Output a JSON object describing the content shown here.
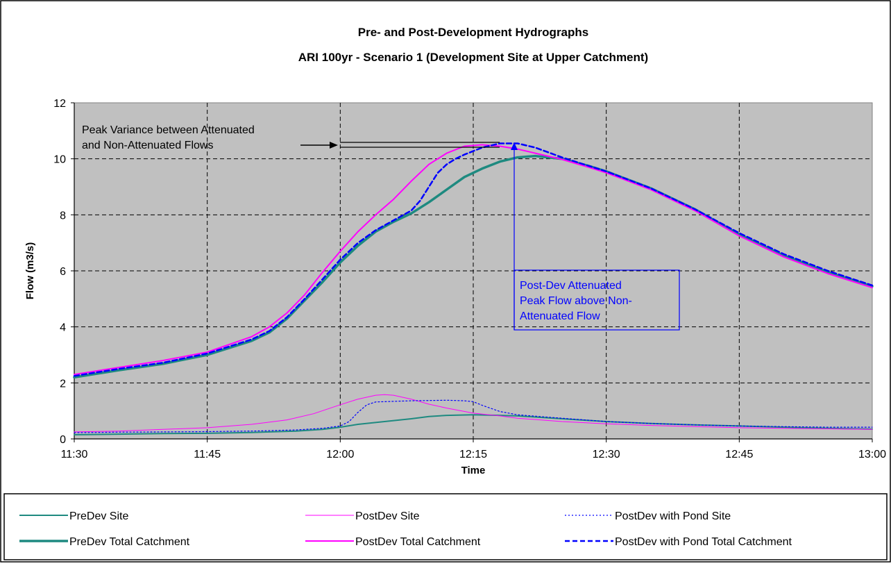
{
  "chart_data": {
    "type": "line",
    "title": "Pre- and Post-Development Hydrographs",
    "subtitle": "ARI 100yr - Scenario 1 (Development Site at Upper Catchment)",
    "xlabel": "Time",
    "ylabel": "Flow (m3/s)",
    "x_unit": "minutes after 11:30",
    "xlim": [
      0,
      90
    ],
    "ylim": [
      0,
      12
    ],
    "x_ticks": [
      0,
      15,
      30,
      45,
      60,
      75,
      90
    ],
    "x_tick_labels": [
      "11:30",
      "11:45",
      "12:00",
      "12:15",
      "12:30",
      "12:45",
      "13:00"
    ],
    "y_ticks": [
      0,
      2,
      4,
      6,
      8,
      10,
      12
    ],
    "y_tick_labels": [
      "0",
      "2",
      "4",
      "6",
      "8",
      "10",
      "12"
    ],
    "grid": true,
    "legend_position": "bottom",
    "plot_background": "#c0c0c0",
    "series": [
      {
        "name": "PreDev Site",
        "color": "#1e8a80",
        "style": "solid-medium",
        "x": [
          0,
          5,
          10,
          15,
          20,
          25,
          28,
          30,
          32,
          35,
          38,
          40,
          42,
          45,
          48,
          50,
          55,
          60,
          65,
          70,
          75,
          80,
          85,
          90
        ],
        "y": [
          0.15,
          0.17,
          0.19,
          0.2,
          0.23,
          0.28,
          0.34,
          0.42,
          0.52,
          0.62,
          0.72,
          0.8,
          0.84,
          0.86,
          0.84,
          0.82,
          0.72,
          0.62,
          0.55,
          0.5,
          0.46,
          0.42,
          0.38,
          0.35
        ]
      },
      {
        "name": "PostDev Site",
        "color": "#ff00ff",
        "style": "solid-thin",
        "x": [
          0,
          5,
          10,
          15,
          20,
          24,
          27,
          30,
          32,
          34,
          35,
          36,
          38,
          40,
          42,
          45,
          48,
          50,
          55,
          60,
          65,
          70,
          75,
          80,
          85,
          90
        ],
        "y": [
          0.25,
          0.28,
          0.34,
          0.4,
          0.52,
          0.68,
          0.9,
          1.22,
          1.42,
          1.56,
          1.58,
          1.56,
          1.42,
          1.24,
          1.1,
          0.92,
          0.82,
          0.74,
          0.62,
          0.54,
          0.48,
          0.44,
          0.4,
          0.38,
          0.36,
          0.34
        ]
      },
      {
        "name": "PostDev with Pond Site",
        "color": "#0000ff",
        "style": "dotted",
        "x": [
          0,
          5,
          10,
          15,
          20,
          25,
          28,
          30,
          31,
          32,
          33,
          34,
          38,
          42,
          44,
          45,
          46,
          48,
          50,
          55,
          60,
          65,
          70,
          75,
          80,
          85,
          90
        ],
        "y": [
          0.22,
          0.24,
          0.25,
          0.26,
          0.28,
          0.32,
          0.38,
          0.46,
          0.62,
          0.95,
          1.22,
          1.32,
          1.36,
          1.38,
          1.36,
          1.33,
          1.2,
          0.98,
          0.86,
          0.74,
          0.62,
          0.55,
          0.5,
          0.46,
          0.44,
          0.42,
          0.42
        ]
      },
      {
        "name": "PreDev Total Catchment",
        "color": "#1e8a80",
        "style": "solid-thick",
        "x": [
          0,
          5,
          10,
          15,
          20,
          22,
          24,
          26,
          28,
          30,
          32,
          34,
          36,
          38,
          40,
          42,
          44,
          46,
          48,
          50,
          52,
          55,
          58,
          60,
          65,
          70,
          75,
          80,
          85,
          90
        ],
        "y": [
          2.2,
          2.45,
          2.68,
          3.0,
          3.5,
          3.8,
          4.3,
          4.95,
          5.6,
          6.3,
          6.9,
          7.4,
          7.75,
          8.05,
          8.45,
          8.9,
          9.35,
          9.65,
          9.9,
          10.05,
          10.1,
          10.0,
          9.75,
          9.55,
          8.95,
          8.2,
          7.3,
          6.55,
          5.95,
          5.45
        ]
      },
      {
        "name": "PostDev Total Catchment",
        "color": "#ff00ff",
        "style": "solid-medium",
        "x": [
          0,
          5,
          10,
          15,
          20,
          22,
          24,
          26,
          28,
          30,
          32,
          34,
          36,
          38,
          40,
          42,
          44,
          46,
          48,
          50,
          52,
          55,
          58,
          60,
          65,
          70,
          75,
          80,
          85,
          90
        ],
        "y": [
          2.3,
          2.55,
          2.8,
          3.1,
          3.65,
          4.0,
          4.5,
          5.15,
          5.95,
          6.7,
          7.4,
          8.0,
          8.55,
          9.2,
          9.8,
          10.2,
          10.45,
          10.5,
          10.45,
          10.35,
          10.2,
          9.98,
          9.7,
          9.5,
          8.9,
          8.15,
          7.25,
          6.5,
          5.9,
          5.4
        ]
      },
      {
        "name": "PostDev with Pond Total Catchment",
        "color": "#0000ff",
        "style": "dashed",
        "x": [
          0,
          5,
          10,
          15,
          20,
          22,
          24,
          26,
          28,
          30,
          32,
          34,
          36,
          38,
          39,
          40,
          41,
          42,
          43,
          44,
          46,
          48,
          50,
          52,
          55,
          58,
          60,
          65,
          70,
          75,
          80,
          85,
          90
        ],
        "y": [
          2.25,
          2.5,
          2.72,
          3.05,
          3.55,
          3.85,
          4.35,
          5.0,
          5.7,
          6.4,
          7.0,
          7.45,
          7.8,
          8.15,
          8.5,
          9.0,
          9.5,
          9.8,
          10.0,
          10.15,
          10.4,
          10.55,
          10.55,
          10.4,
          10.05,
          9.75,
          9.55,
          8.95,
          8.2,
          7.35,
          6.6,
          6.0,
          5.48
        ]
      }
    ],
    "annotations": [
      {
        "text": "Peak Variance between Attenuated and Non-Attenuated Flows",
        "lines": [
          "Peak Variance between Attenuated",
          "and Non-Attenuated Flows"
        ],
        "type": "callout-arrow",
        "color": "#000000"
      },
      {
        "text": "Post-Dev Attenuated Peak Flow above Non-Attenuated Flow",
        "lines": [
          "Post-Dev Attenuated",
          "Peak Flow above Non-",
          "Attenuated Flow"
        ],
        "type": "boxed-callout",
        "color": "#0000ff"
      }
    ]
  }
}
